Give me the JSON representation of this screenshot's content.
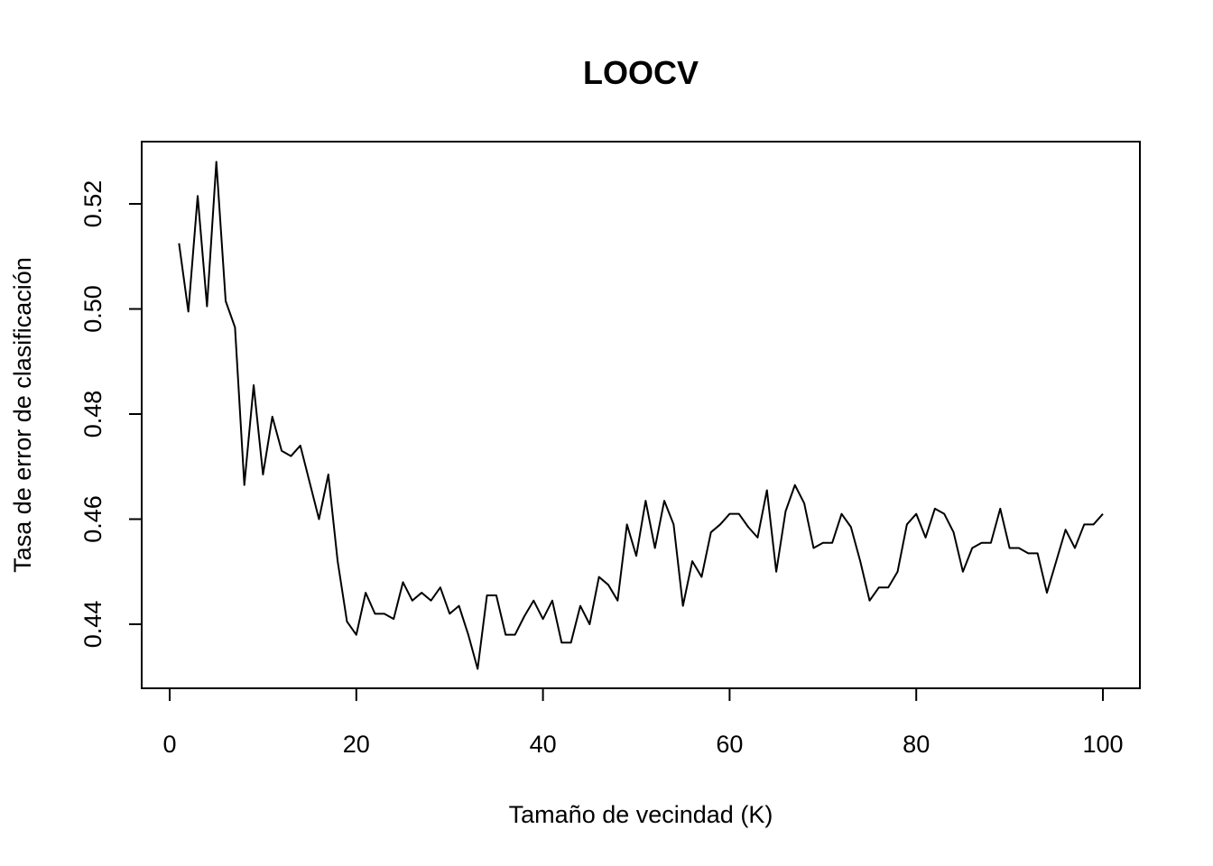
{
  "chart_data": {
    "type": "line",
    "title": "LOOCV",
    "xlabel": "Tamaño de vecindad (K)",
    "ylabel": "Tasa de error de clasificación",
    "xlim": [
      0,
      100
    ],
    "ylim": [
      0.43,
      0.53
    ],
    "x_ticks": [
      0,
      20,
      40,
      60,
      80,
      100
    ],
    "x_tick_labels": [
      "0",
      "20",
      "40",
      "60",
      "80",
      "100"
    ],
    "y_ticks": [
      0.44,
      0.46,
      0.48,
      0.5,
      0.52
    ],
    "y_tick_labels": [
      "0.44",
      "0.46",
      "0.48",
      "0.50",
      "0.52"
    ],
    "grid": false,
    "legend": "none",
    "line_color": "#000000",
    "x": [
      1,
      2,
      3,
      4,
      5,
      6,
      7,
      8,
      9,
      10,
      11,
      12,
      13,
      14,
      15,
      16,
      17,
      18,
      19,
      20,
      21,
      22,
      23,
      24,
      25,
      26,
      27,
      28,
      29,
      30,
      31,
      32,
      33,
      34,
      35,
      36,
      37,
      38,
      39,
      40,
      41,
      42,
      43,
      44,
      45,
      46,
      47,
      48,
      49,
      50,
      51,
      52,
      53,
      54,
      55,
      56,
      57,
      58,
      59,
      60,
      61,
      62,
      63,
      64,
      65,
      66,
      67,
      68,
      69,
      70,
      71,
      72,
      73,
      74,
      75,
      76,
      77,
      78,
      79,
      80,
      81,
      82,
      83,
      84,
      85,
      86,
      87,
      88,
      89,
      90,
      91,
      92,
      93,
      94,
      95,
      96,
      97,
      98,
      99,
      100
    ],
    "y": [
      0.5125,
      0.4995,
      0.5215,
      0.5005,
      0.528,
      0.5015,
      0.4965,
      0.4665,
      0.4855,
      0.4685,
      0.4795,
      0.473,
      0.472,
      0.474,
      0.467,
      0.46,
      0.4685,
      0.452,
      0.4405,
      0.438,
      0.446,
      0.442,
      0.442,
      0.441,
      0.448,
      0.4445,
      0.446,
      0.4445,
      0.447,
      0.442,
      0.4435,
      0.438,
      0.4315,
      0.4455,
      0.4455,
      0.438,
      0.438,
      0.4415,
      0.4445,
      0.441,
      0.4445,
      0.4365,
      0.4365,
      0.4435,
      0.44,
      0.449,
      0.4475,
      0.4445,
      0.459,
      0.453,
      0.4635,
      0.4545,
      0.4635,
      0.459,
      0.4435,
      0.452,
      0.449,
      0.4575,
      0.459,
      0.461,
      0.461,
      0.4585,
      0.4565,
      0.4655,
      0.45,
      0.4615,
      0.4665,
      0.463,
      0.4545,
      0.4555,
      0.4555,
      0.461,
      0.4585,
      0.452,
      0.4445,
      0.447,
      0.447,
      0.45,
      0.459,
      0.461,
      0.4565,
      0.462,
      0.461,
      0.4575,
      0.45,
      0.4545,
      0.4555,
      0.4555,
      0.462,
      0.4545,
      0.4545,
      0.4535,
      0.4535,
      0.446,
      0.452,
      0.458,
      0.4545,
      0.459,
      0.459,
      0.461
    ]
  }
}
